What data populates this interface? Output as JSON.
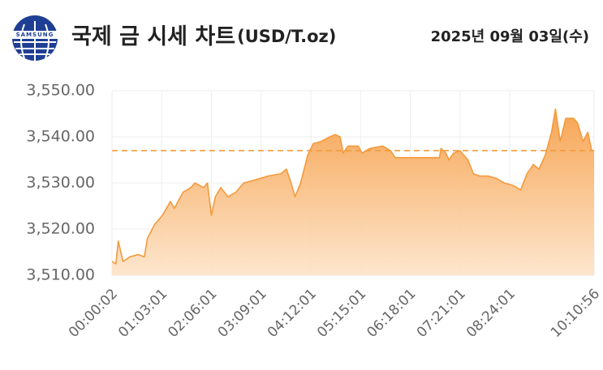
{
  "header": {
    "logo_text": "SAMSUNG",
    "title": "국제 금 시세 차트",
    "unit": "(USD/T.oz)",
    "date": "2025년 09월 03일(수)"
  },
  "chart_data": {
    "type": "line",
    "x": [
      "00:00:02",
      "00:05",
      "00:08",
      "00:14",
      "00:23",
      "00:33",
      "00:41",
      "00:45",
      "00:54",
      "01:04",
      "01:14",
      "01:19",
      "01:30",
      "01:40",
      "01:45",
      "01:56",
      "02:01",
      "02:06",
      "02:11",
      "02:18",
      "02:27",
      "02:37",
      "02:47",
      "02:58",
      "03:08",
      "03:18",
      "03:34",
      "03:41",
      "03:47",
      "03:52",
      "03:59",
      "04:08",
      "04:15",
      "04:25",
      "04:36",
      "04:43",
      "04:49",
      "04:53",
      "04:59",
      "05:12",
      "05:17",
      "05:27",
      "05:43",
      "05:53",
      "05:59",
      "06:14",
      "06:34",
      "06:55",
      "06:57",
      "07:03",
      "07:07",
      "07:13",
      "07:21",
      "07:31",
      "07:38",
      "07:46",
      "07:57",
      "08:07",
      "08:17",
      "08:28",
      "08:38",
      "08:46",
      "08:54",
      "09:01",
      "09:09",
      "09:17",
      "09:22",
      "09:28",
      "09:35",
      "09:45",
      "09:50",
      "09:57",
      "10:03",
      "10:08",
      "10:10:56"
    ],
    "series": [
      {
        "name": "국제 금 시세",
        "color": "#f39a3c",
        "values": [
          3513,
          3512.5,
          3517.4,
          3513,
          3514,
          3514.5,
          3514,
          3518,
          3521,
          3523,
          3526,
          3524.5,
          3528,
          3529,
          3530,
          3529,
          3530,
          3523,
          3527,
          3529,
          3527,
          3528,
          3530,
          3530.5,
          3531,
          3531.5,
          3532,
          3533,
          3530,
          3527,
          3530,
          3536,
          3538.5,
          3539,
          3540,
          3540.5,
          3540,
          3536.5,
          3538,
          3538,
          3536.5,
          3537.5,
          3538,
          3537,
          3535.5,
          3535.5,
          3535.5,
          3535.5,
          3537.5,
          3536.5,
          3535,
          3536.5,
          3537,
          3535,
          3532,
          3531.5,
          3531.5,
          3531,
          3530,
          3529.5,
          3528.5,
          3532,
          3534,
          3533,
          3536,
          3541,
          3546,
          3539,
          3544,
          3544,
          3543,
          3539,
          3541,
          3537,
          3537
        ]
      }
    ],
    "reference_line": 3537,
    "xlim": [
      "00:00:02",
      "10:10:56"
    ],
    "xticks": [
      "00:00:02",
      "01:03:01",
      "02:06:01",
      "03:09:01",
      "04:12:01",
      "05:15:01",
      "06:18:01",
      "07:21:01",
      "08:24:01",
      "10:10:56"
    ],
    "ylim": [
      3510,
      3550
    ],
    "yticks": [
      {
        "value": 3510,
        "label": "3,510.00"
      },
      {
        "value": 3520,
        "label": "3,520.00"
      },
      {
        "value": 3530,
        "label": "3,530.00"
      },
      {
        "value": 3540,
        "label": "3,540.00"
      },
      {
        "value": 3550,
        "label": "3,550.00"
      }
    ],
    "grid": true
  }
}
